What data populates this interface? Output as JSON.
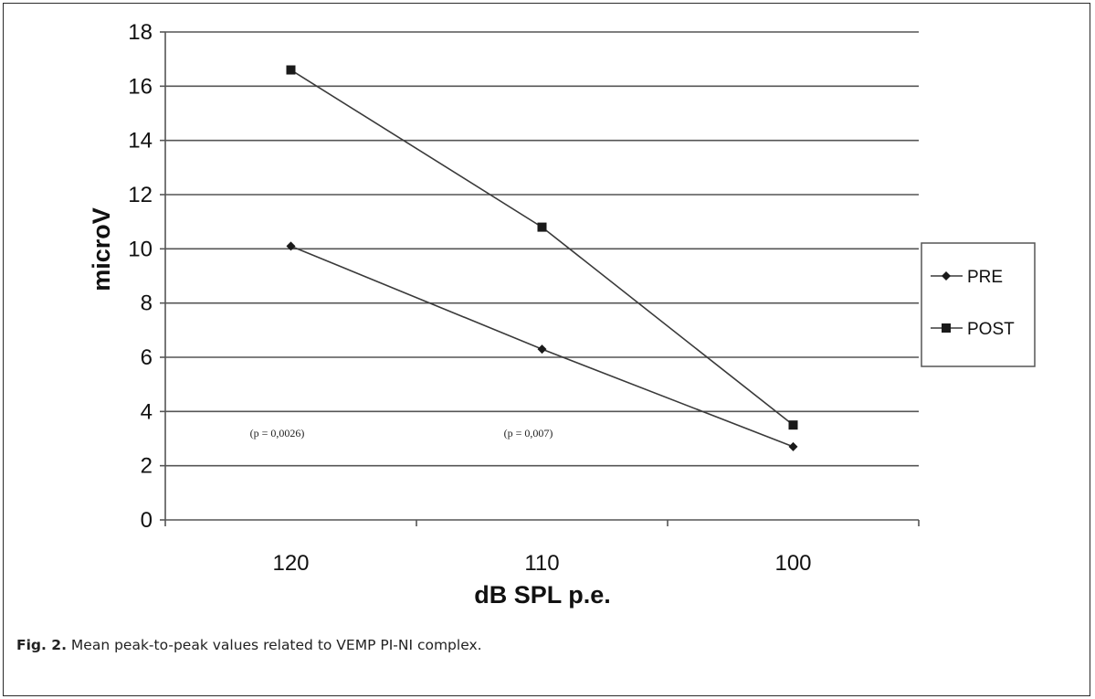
{
  "caption": {
    "label": "Fig. 2.",
    "text": "Mean peak-to-peak values related to VEMP PI-NI complex."
  },
  "colors": {
    "line": "#3a3a3a",
    "grid": "#555555",
    "marker": "#1a1a1a",
    "frame": "#2a2a2a"
  },
  "chart_data": {
    "type": "line",
    "title": "",
    "xlabel": "dB SPL p.e.",
    "ylabel": "microV",
    "categories": [
      "120",
      "110",
      "100"
    ],
    "ylim": [
      0,
      18
    ],
    "ytick_step": 2,
    "yticks": [
      "0",
      "2",
      "4",
      "6",
      "8",
      "10",
      "12",
      "14",
      "16",
      "18"
    ],
    "grid": true,
    "legend_position": "right",
    "series": [
      {
        "name": "PRE",
        "marker": "diamond",
        "values": [
          10.1,
          6.3,
          2.7
        ]
      },
      {
        "name": "POST",
        "marker": "square",
        "values": [
          16.6,
          10.8,
          3.5
        ]
      }
    ],
    "annotations": [
      {
        "text": "(p = 0,0026)",
        "category_index": 0,
        "y": 3.2
      },
      {
        "text": "(p = 0,007)",
        "category_index": 1,
        "y": 3.2
      }
    ]
  }
}
